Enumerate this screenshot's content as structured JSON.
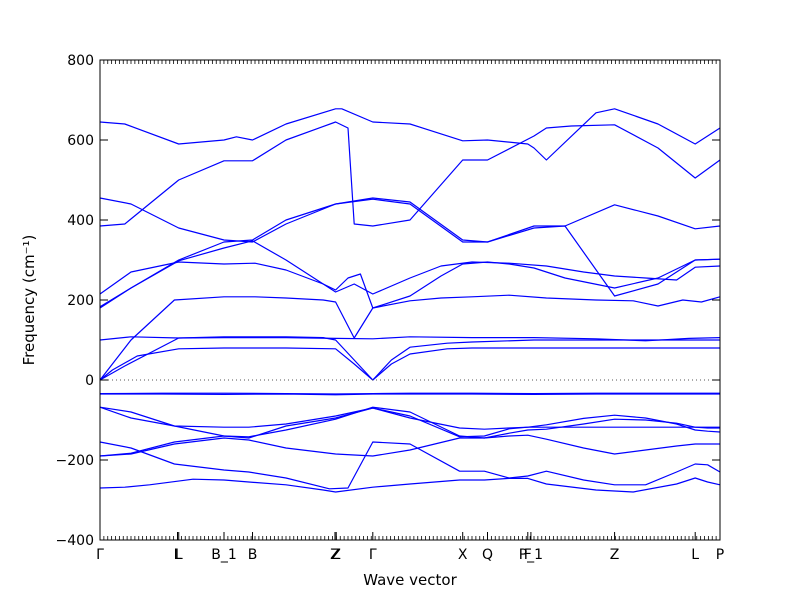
{
  "chart_data": {
    "type": "line",
    "xlabel": "Wave vector",
    "ylabel": "Frequency (cm⁻¹)",
    "ylim": [
      -400,
      800
    ],
    "y_ticks": [
      -400,
      -200,
      0,
      200,
      400,
      600,
      800
    ],
    "x_range": [
      0,
      1
    ],
    "x_ticks": [
      {
        "label": "Γ",
        "x": 0.0
      },
      {
        "label": "L",
        "x": 0.125
      },
      {
        "label": "L",
        "x": 0.127
      },
      {
        "label": "B_1",
        "x": 0.2
      },
      {
        "label": "B",
        "x": 0.246
      },
      {
        "label": "Z",
        "x": 0.379
      },
      {
        "label": "Z",
        "x": 0.381
      },
      {
        "label": "Γ",
        "x": 0.44
      },
      {
        "label": "X",
        "x": 0.585
      },
      {
        "label": "Q",
        "x": 0.625
      },
      {
        "label": "F",
        "x": 0.69
      },
      {
        "label": "P_1",
        "x": 0.695
      },
      {
        "label": "Z",
        "x": 0.83
      },
      {
        "label": "L",
        "x": 0.96
      },
      {
        "label": "P",
        "x": 1.0
      }
    ],
    "zero_line": true,
    "series": [
      {
        "x": [
          0,
          0.04,
          0.08,
          0.15,
          0.2,
          0.24,
          0.3,
          0.36,
          0.38,
          0.44,
          0.5,
          0.58,
          0.62,
          0.66,
          0.69,
          0.72,
          0.8,
          0.86,
          0.93,
          0.96,
          0.98,
          1.0
        ],
        "values": [
          -270,
          -268,
          -262,
          -248,
          -250,
          -255,
          -262,
          -275,
          -280,
          -268,
          -260,
          -250,
          -250,
          -246,
          -246,
          -260,
          -275,
          -280,
          -260,
          -245,
          -255,
          -262
        ]
      },
      {
        "x": [
          0,
          0.05,
          0.12,
          0.2,
          0.24,
          0.3,
          0.37,
          0.4,
          0.44,
          0.5,
          0.58,
          0.62,
          0.66,
          0.69,
          0.72,
          0.78,
          0.83,
          0.88,
          0.93,
          0.96,
          0.98,
          1.0
        ],
        "values": [
          -155,
          -170,
          -210,
          -225,
          -230,
          -245,
          -272,
          -270,
          -155,
          -160,
          -228,
          -228,
          -245,
          -240,
          -228,
          -250,
          -262,
          -262,
          -230,
          -210,
          -212,
          -230
        ]
      },
      {
        "x": [
          0,
          0.05,
          0.12,
          0.2,
          0.24,
          0.3,
          0.38,
          0.44,
          0.5,
          0.58,
          0.62,
          0.66,
          0.69,
          0.72,
          0.78,
          0.83,
          0.88,
          0.93,
          0.96,
          0.98,
          1.0
        ],
        "values": [
          -190,
          -185,
          -160,
          -145,
          -150,
          -170,
          -185,
          -190,
          -175,
          -145,
          -145,
          -140,
          -138,
          -148,
          -170,
          -185,
          -175,
          -165,
          -160,
          -160,
          -160
        ]
      },
      {
        "x": [
          0,
          0.05,
          0.12,
          0.2,
          0.24,
          0.3,
          0.38,
          0.44,
          0.5,
          0.58,
          0.62,
          0.66,
          0.69,
          0.72,
          0.78,
          0.83,
          0.88,
          0.93,
          0.96,
          0.98,
          1.0
        ],
        "values": [
          -190,
          -183,
          -155,
          -140,
          -142,
          -125,
          -98,
          -68,
          -80,
          -140,
          -145,
          -133,
          -125,
          -123,
          -110,
          -98,
          -100,
          -108,
          -118,
          -120,
          -120
        ]
      },
      {
        "x": [
          0,
          0.05,
          0.12,
          0.2,
          0.24,
          0.3,
          0.38,
          0.44,
          0.5,
          0.58,
          0.62,
          0.66,
          0.69,
          0.72,
          0.78,
          0.83,
          0.88,
          0.93,
          0.96,
          0.98,
          1.0
        ],
        "values": [
          -68,
          -80,
          -115,
          -140,
          -145,
          -115,
          -95,
          -70,
          -90,
          -142,
          -140,
          -122,
          -118,
          -112,
          -96,
          -88,
          -95,
          -110,
          -125,
          -128,
          -130
        ]
      },
      {
        "x": [
          0,
          0.05,
          0.12,
          0.2,
          0.24,
          0.3,
          0.38,
          0.44,
          0.5,
          0.58,
          0.62,
          0.66,
          0.69,
          0.72,
          0.78,
          0.83,
          0.88,
          0.93,
          0.96,
          0.98,
          1.0
        ],
        "values": [
          -68,
          -95,
          -115,
          -118,
          -118,
          -110,
          -90,
          -70,
          -95,
          -120,
          -123,
          -120,
          -118,
          -118,
          -118,
          -118,
          -118,
          -118,
          -118,
          -118,
          -118
        ]
      },
      {
        "x": [
          0,
          0.1,
          0.2,
          0.3,
          0.38,
          0.44,
          0.5,
          0.6,
          0.7,
          0.8,
          0.9,
          1.0
        ],
        "values": [
          -35,
          -35,
          -36,
          -35,
          -37,
          -35,
          -35,
          -35,
          -36,
          -35,
          -35,
          -35
        ]
      },
      {
        "x": [
          0,
          0.1,
          0.2,
          0.3,
          0.38,
          0.44,
          0.5,
          0.6,
          0.7,
          0.8,
          0.9,
          1.0
        ],
        "values": [
          -34,
          -33,
          -33,
          -34,
          -35,
          -34,
          -33,
          -33,
          -34,
          -33,
          -33,
          -33
        ]
      },
      {
        "x": [
          0,
          0.02,
          0.06,
          0.127,
          0.2,
          0.3,
          0.38,
          0.41,
          0.44,
          0.47,
          0.5,
          0.56,
          0.6,
          0.7,
          0.8,
          0.9,
          1.0
        ],
        "values": [
          0,
          25,
          60,
          78,
          80,
          80,
          78,
          40,
          0,
          40,
          65,
          78,
          80,
          80,
          80,
          80,
          80
        ]
      },
      {
        "x": [
          0,
          0.04,
          0.127,
          0.2,
          0.3,
          0.36,
          0.38,
          0.41,
          0.44,
          0.47,
          0.5,
          0.56,
          0.6,
          0.7,
          0.8,
          0.9,
          1.0
        ],
        "values": [
          0,
          35,
          105,
          108,
          108,
          106,
          100,
          50,
          0,
          50,
          82,
          92,
          95,
          100,
          100,
          100,
          100
        ]
      },
      {
        "x": [
          0,
          0.05,
          0.127,
          0.2,
          0.3,
          0.38,
          0.44,
          0.5,
          0.6,
          0.7,
          0.8,
          0.88,
          0.95,
          1.0
        ],
        "values": [
          100,
          108,
          105,
          106,
          106,
          104,
          103,
          108,
          106,
          106,
          103,
          98,
          104,
          106
        ]
      },
      {
        "x": [
          0,
          0.05,
          0.12,
          0.2,
          0.25,
          0.3,
          0.36,
          0.38,
          0.41,
          0.44,
          0.5,
          0.55,
          0.6,
          0.66,
          0.72,
          0.8,
          0.86,
          0.9,
          0.94,
          0.97,
          1.0
        ],
        "values": [
          0,
          100,
          200,
          208,
          208,
          205,
          200,
          195,
          105,
          180,
          198,
          205,
          208,
          212,
          205,
          200,
          198,
          185,
          200,
          195,
          208
        ]
      },
      {
        "x": [
          0,
          0.05,
          0.127,
          0.2,
          0.246,
          0.3,
          0.36,
          0.38,
          0.4,
          0.42,
          0.44,
          0.5,
          0.55,
          0.585,
          0.625,
          0.66,
          0.7,
          0.75,
          0.83,
          0.9,
          0.96,
          1.0
        ],
        "values": [
          180,
          230,
          298,
          330,
          348,
          300,
          240,
          225,
          255,
          265,
          180,
          210,
          260,
          290,
          295,
          290,
          280,
          255,
          230,
          255,
          300,
          302
        ]
      },
      {
        "x": [
          0,
          0.05,
          0.127,
          0.2,
          0.25,
          0.3,
          0.36,
          0.38,
          0.41,
          0.44,
          0.5,
          0.55,
          0.6,
          0.66,
          0.72,
          0.78,
          0.83,
          0.88,
          0.93,
          0.96,
          1.0
        ],
        "values": [
          215,
          270,
          295,
          290,
          292,
          275,
          240,
          220,
          240,
          215,
          255,
          285,
          295,
          292,
          285,
          270,
          260,
          255,
          250,
          282,
          285
        ]
      },
      {
        "x": [
          0,
          0.05,
          0.127,
          0.2,
          0.246,
          0.3,
          0.38,
          0.44,
          0.5,
          0.585,
          0.625,
          0.7,
          0.75,
          0.83,
          0.9,
          0.96,
          1.0
        ],
        "values": [
          455,
          440,
          380,
          350,
          345,
          390,
          440,
          452,
          440,
          345,
          345,
          385,
          385,
          438,
          410,
          378,
          385
        ]
      },
      {
        "x": [
          0,
          0.05,
          0.127,
          0.2,
          0.246,
          0.3,
          0.38,
          0.44,
          0.5,
          0.585,
          0.625,
          0.7,
          0.75,
          0.83,
          0.9,
          0.96,
          1.0
        ],
        "values": [
          183,
          230,
          300,
          345,
          350,
          400,
          440,
          455,
          445,
          350,
          345,
          380,
          385,
          210,
          240,
          300,
          302
        ]
      },
      {
        "x": [
          0,
          0.04,
          0.127,
          0.2,
          0.246,
          0.3,
          0.38,
          0.4,
          0.41,
          0.44,
          0.5,
          0.585,
          0.625,
          0.7,
          0.72,
          0.76,
          0.83,
          0.9,
          0.96,
          1.0
        ],
        "values": [
          385,
          390,
          500,
          548,
          548,
          600,
          645,
          630,
          390,
          385,
          400,
          550,
          550,
          610,
          630,
          635,
          638,
          580,
          505,
          550
        ]
      },
      {
        "x": [
          0,
          0.04,
          0.127,
          0.2,
          0.22,
          0.246,
          0.3,
          0.38,
          0.39,
          0.44,
          0.5,
          0.585,
          0.625,
          0.69,
          0.7,
          0.72,
          0.8,
          0.83,
          0.9,
          0.96,
          1.0
        ],
        "values": [
          645,
          640,
          590,
          600,
          608,
          600,
          640,
          678,
          678,
          645,
          640,
          598,
          600,
          590,
          580,
          550,
          668,
          678,
          640,
          590,
          630
        ]
      }
    ]
  }
}
